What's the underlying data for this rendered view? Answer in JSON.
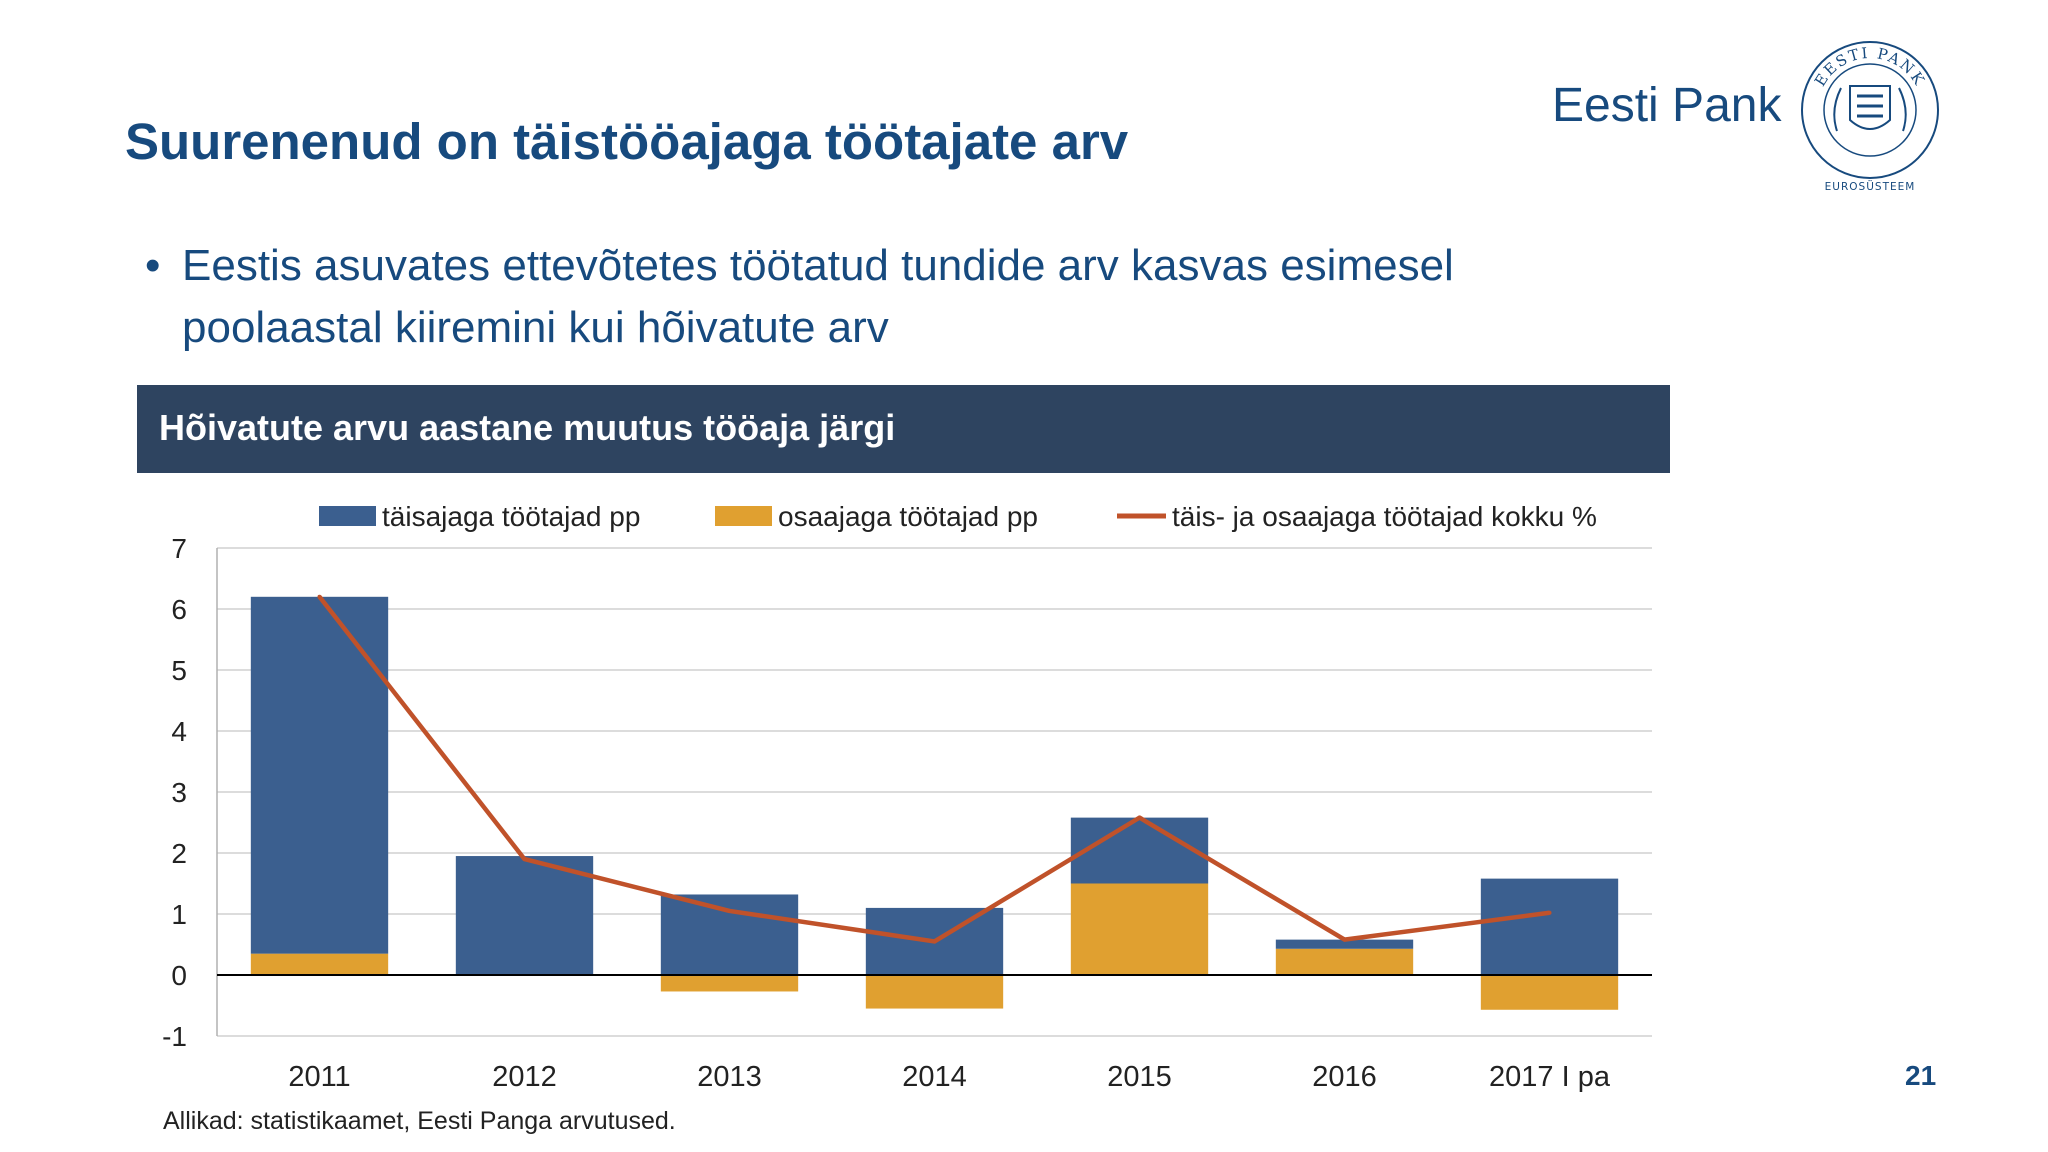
{
  "slide": {
    "title": "Suurenenud on täistööajaga töötajate arv",
    "brand": "Eesti Pank",
    "seal": {
      "ring_text": "EESTI PANK",
      "subtitle": "EUROSÜSTEEM"
    },
    "bullet": "Eestis asuvates ettevõtetes töötatud tundide arv kasvas esimesel poolaastal kiiremini kui hõivatute arv",
    "source": "Allikad: statistikaamet, Eesti Panga arvutused.",
    "page_number": "21"
  },
  "colors": {
    "title": "#174a7e",
    "header_bg": "#2e4460",
    "full_time": "#3b5f8f",
    "part_time": "#e0a030",
    "total_line": "#c0522a",
    "grid": "#d0d0d0"
  },
  "chart_data": {
    "type": "bar",
    "stacked": true,
    "title": "Hõivatute arvu aastane muutus tööaja järgi",
    "categories": [
      "2011",
      "2012",
      "2013",
      "2014",
      "2015",
      "2016",
      "2017 I pa"
    ],
    "ylim": [
      -1,
      7
    ],
    "yticks": [
      "-1",
      "0",
      "1",
      "2",
      "3",
      "4",
      "5",
      "6",
      "7"
    ],
    "grid": true,
    "legend_position": "top",
    "series": [
      {
        "name": "täisajaga töötajad pp",
        "kind": "bar",
        "color": "#3b5f8f",
        "values": [
          5.85,
          1.95,
          1.32,
          1.1,
          1.08,
          0.15,
          1.58
        ]
      },
      {
        "name": "osaajaga töötajad pp",
        "kind": "bar",
        "color": "#e0a030",
        "values": [
          0.35,
          0.0,
          -0.27,
          -0.55,
          1.5,
          0.43,
          -0.57
        ]
      },
      {
        "name": "täis- ja osaajaga töötajad kokku %",
        "kind": "line",
        "color": "#c0522a",
        "values": [
          6.2,
          1.9,
          1.05,
          0.55,
          2.58,
          0.58,
          1.02
        ]
      }
    ]
  }
}
